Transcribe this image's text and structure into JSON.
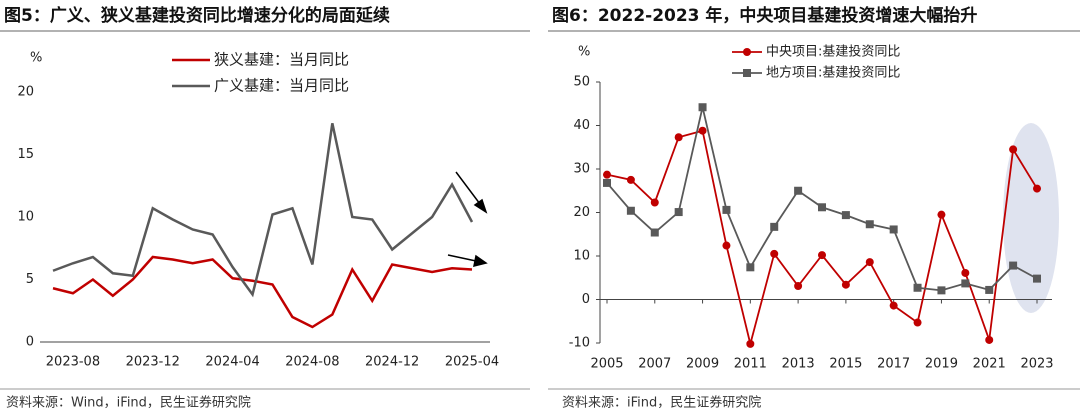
{
  "chart_data": [
    {
      "type": "line",
      "title": "图5：广义、狭义基建投资同比增速分化的局面延续",
      "y_unit": "%",
      "source": "资料来源：Wind，iFind，民生证券研究院",
      "categories": [
        null,
        "2023-08",
        null,
        null,
        null,
        "2023-12",
        null,
        null,
        null,
        "2024-04",
        null,
        null,
        null,
        "2024-08",
        null,
        null,
        null,
        "2024-12",
        null,
        null,
        null,
        "2025-04"
      ],
      "ylim": [
        0,
        20
      ],
      "yticks": [
        0,
        5,
        10,
        15,
        20
      ],
      "series": [
        {
          "name": "狭义基建：当月同比",
          "color": "#c00000",
          "values": [
            4.3,
            3.9,
            5.0,
            3.7,
            5.0,
            6.8,
            6.6,
            6.3,
            6.6,
            5.1,
            4.9,
            4.6,
            2.0,
            1.2,
            2.2,
            5.8,
            3.3,
            6.2,
            5.9,
            5.6,
            5.9,
            5.8
          ]
        },
        {
          "name": "广义基建：当月同比",
          "color": "#595959",
          "values": [
            5.7,
            6.3,
            6.8,
            5.5,
            5.3,
            10.7,
            9.8,
            9.0,
            8.6,
            6.0,
            3.8,
            10.2,
            10.7,
            6.2,
            17.5,
            10.0,
            9.8,
            7.4,
            8.7,
            10.0,
            12.6,
            9.6
          ]
        }
      ]
    },
    {
      "type": "line",
      "title": "图6：2022-2023 年，中央项目基建投资增速大幅抬升",
      "y_unit": "%",
      "source": "资料来源：iFind，民生证券研究院",
      "x": [
        2005,
        2006,
        2007,
        2008,
        2009,
        2010,
        2011,
        2012,
        2013,
        2014,
        2015,
        2016,
        2017,
        2018,
        2019,
        2020,
        2021,
        2022,
        2023
      ],
      "xlim": [
        2005,
        2023
      ],
      "xticks": [
        2005,
        2007,
        2009,
        2011,
        2013,
        2015,
        2017,
        2019,
        2021,
        2023
      ],
      "ylim": [
        -10,
        50
      ],
      "yticks": [
        -10,
        0,
        10,
        20,
        30,
        40,
        50
      ],
      "series": [
        {
          "name": "中央项目:基建投资同比",
          "color": "#c00000",
          "marker": "circle",
          "values": [
            28.7,
            27.5,
            22.3,
            37.3,
            38.8,
            12.4,
            -10.2,
            10.5,
            3.1,
            10.2,
            3.4,
            8.6,
            -1.4,
            -5.3,
            19.5,
            6.1,
            -9.3,
            34.5,
            25.5
          ]
        },
        {
          "name": "地方项目:基建投资同比",
          "color": "#595959",
          "marker": "square",
          "values": [
            26.8,
            20.4,
            15.4,
            20.1,
            44.2,
            20.6,
            7.4,
            16.7,
            25.0,
            21.2,
            19.4,
            17.3,
            16.1,
            2.7,
            2.1,
            3.7,
            2.2,
            7.8,
            4.8
          ]
        }
      ]
    }
  ]
}
